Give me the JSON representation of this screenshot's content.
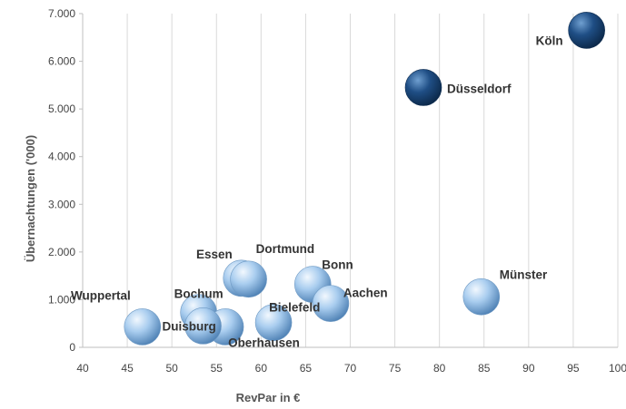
{
  "chart_data": {
    "type": "scatter",
    "variant": "bubble",
    "title": "",
    "xlabel": "RevPar in €",
    "ylabel": "Übernachtungen ('000)",
    "xlim": [
      40,
      100
    ],
    "ylim": [
      0,
      7000
    ],
    "x_ticks": [
      "40",
      "45",
      "50",
      "55",
      "60",
      "65",
      "70",
      "75",
      "80",
      "85",
      "90",
      "95",
      "100"
    ],
    "y_ticks": [
      "0",
      "1.000",
      "2.000",
      "3.000",
      "4.000",
      "5.000",
      "6.000",
      "7.000"
    ],
    "grid": "vertical",
    "legend": "none",
    "colors": {
      "highlight": "#1f4e79",
      "default": "#9dc3e6"
    },
    "points": [
      {
        "label": "Köln",
        "x": 96.5,
        "y": 6650,
        "highlight": true
      },
      {
        "label": "Düsseldorf",
        "x": 78.2,
        "y": 5450,
        "highlight": true
      },
      {
        "label": "Münster",
        "x": 84.7,
        "y": 1060,
        "highlight": false
      },
      {
        "label": "Essen",
        "x": 57.8,
        "y": 1450,
        "highlight": false
      },
      {
        "label": "Dortmund",
        "x": 58.6,
        "y": 1430,
        "highlight": false
      },
      {
        "label": "Bonn",
        "x": 65.8,
        "y": 1320,
        "highlight": false
      },
      {
        "label": "Aachen",
        "x": 67.8,
        "y": 920,
        "highlight": false
      },
      {
        "label": "Bochum",
        "x": 53.0,
        "y": 730,
        "highlight": false
      },
      {
        "label": "Bielefeld",
        "x": 61.4,
        "y": 520,
        "highlight": false
      },
      {
        "label": "Oberhausen",
        "x": 56.0,
        "y": 430,
        "highlight": false
      },
      {
        "label": "Duisburg",
        "x": 53.5,
        "y": 450,
        "highlight": false
      },
      {
        "label": "Wuppertal",
        "x": 46.7,
        "y": 430,
        "highlight": false
      }
    ]
  }
}
